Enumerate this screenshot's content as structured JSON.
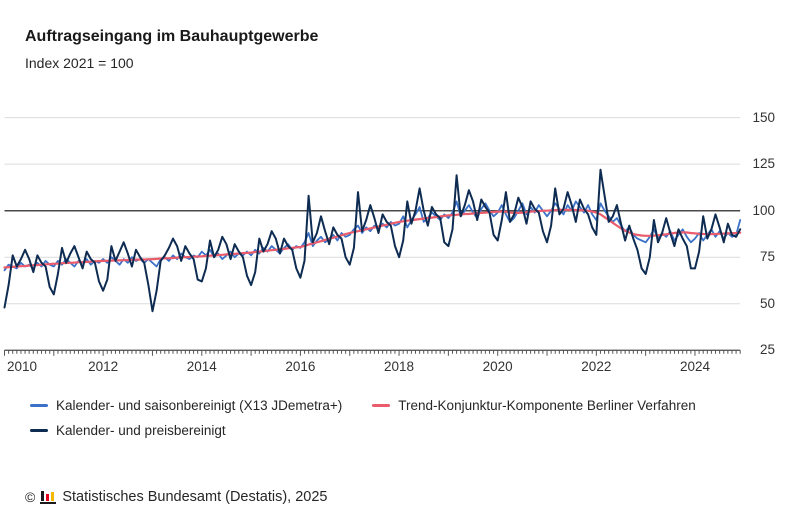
{
  "header": {
    "title": "Auftragseingang im Bauhauptgewerbe",
    "subtitle": "Index 2021 = 100"
  },
  "footer": {
    "copyright": "©",
    "source_label": "Statistisches Bundesamt (Destatis), 2025",
    "logo_icon": "destatis-bars-logo",
    "logo_colors": [
      "#1a1a1a",
      "#e2001a",
      "#f5b800"
    ]
  },
  "colors": {
    "grid": "#dcdcdc",
    "baseline": "#4a4a4a",
    "axis": "#4a4a4a",
    "tick": "#555555",
    "text": "#262626"
  },
  "chart_data": {
    "type": "line",
    "title": "Auftragseingang im Bauhauptgewerbe",
    "subtitle": "Index 2021 = 100",
    "x_start": "2010-01",
    "x_end": "2024-12",
    "x_frequency": "monthly",
    "x_tick_years": [
      2010,
      2012,
      2014,
      2016,
      2018,
      2020,
      2022,
      2024
    ],
    "y_ticks": [
      150,
      125,
      100,
      75,
      50,
      25
    ],
    "ylim": [
      25,
      155
    ],
    "baseline_value": 100,
    "grid": "horizontal",
    "legend_position": "bottom",
    "series": [
      {
        "name": "Kalender- und saisonbereinigt (X13 JDemetra+)",
        "color": "#3b72c8",
        "values": [
          68,
          71,
          70,
          69,
          72,
          70,
          71,
          69,
          72,
          70,
          73,
          71,
          70,
          73,
          71,
          74,
          72,
          70,
          73,
          72,
          74,
          71,
          73,
          72,
          74,
          72,
          75,
          73,
          71,
          74,
          72,
          75,
          73,
          74,
          72,
          74,
          72,
          70,
          74,
          75,
          73,
          76,
          74,
          77,
          75,
          74,
          76,
          75,
          78,
          76,
          79,
          75,
          77,
          74,
          76,
          78,
          75,
          77,
          76,
          78,
          76,
          79,
          77,
          80,
          78,
          81,
          79,
          77,
          80,
          82,
          79,
          81,
          80,
          83,
          88,
          81,
          84,
          86,
          83,
          85,
          87,
          84,
          88,
          86,
          87,
          90,
          92,
          88,
          91,
          89,
          92,
          90,
          93,
          91,
          94,
          92,
          93,
          97,
          91,
          95,
          98,
          102,
          94,
          96,
          99,
          97,
          95,
          98,
          96,
          99,
          105,
          97,
          100,
          103,
          99,
          96,
          101,
          104,
          100,
          97,
          99,
          103,
          98,
          94,
          96,
          100,
          104,
          98,
          102,
          99,
          103,
          100,
          97,
          100,
          104,
          101,
          98,
          103,
          100,
          105,
          102,
          99,
          103,
          98,
          95,
          104,
          100,
          97,
          94,
          96,
          92,
          89,
          91,
          87,
          85,
          84,
          83,
          86,
          90,
          85,
          88,
          86,
          89,
          84,
          87,
          90,
          86,
          83,
          85,
          88,
          84,
          87,
          90,
          86,
          89,
          85,
          88,
          86,
          87,
          95
        ]
      },
      {
        "name": "Trend-Konjunktur-Komponente Berliner Verfahren",
        "color": "#ea5c6b",
        "values": [
          69.5,
          69.7,
          69.8,
          70,
          70.2,
          70.3,
          70.5,
          70.7,
          70.8,
          71,
          71.2,
          71.3,
          71.5,
          71.6,
          71.8,
          71.9,
          72,
          72.1,
          72.3,
          72.4,
          72.5,
          72.6,
          72.8,
          72.9,
          73,
          73.1,
          73.2,
          73.3,
          73.3,
          73.4,
          73.5,
          73.6,
          73.7,
          73.8,
          73.8,
          73.9,
          74,
          74.1,
          74.3,
          74.4,
          74.5,
          74.6,
          74.8,
          74.9,
          75,
          75.1,
          75.3,
          75.4,
          75.5,
          75.7,
          75.8,
          76,
          76.2,
          76.3,
          76.5,
          76.7,
          76.8,
          77,
          77.2,
          77.3,
          77.5,
          77.8,
          78,
          78.3,
          78.5,
          78.8,
          79,
          79.3,
          79.5,
          79.8,
          80,
          80.3,
          80.5,
          81.1,
          81.8,
          82.4,
          83,
          83.6,
          84.3,
          84.9,
          85.5,
          86.1,
          86.8,
          87.4,
          88,
          88.5,
          89,
          89.5,
          90,
          90.5,
          91,
          91.5,
          92,
          92.5,
          93,
          93.5,
          94,
          94.3,
          94.6,
          94.9,
          95.2,
          95.5,
          95.8,
          96,
          96.3,
          96.6,
          96.9,
          97.2,
          97.5,
          97.7,
          97.8,
          98,
          98.2,
          98.3,
          98.5,
          98.7,
          98.8,
          99,
          99.2,
          99.3,
          99.5,
          99.5,
          99.5,
          99,
          98.8,
          98.8,
          99,
          99.2,
          99.5,
          99.7,
          99.8,
          100,
          100,
          100.2,
          100.3,
          100.5,
          100.5,
          100.5,
          100.5,
          100.4,
          100.3,
          100.2,
          100,
          99.5,
          99,
          98,
          96.5,
          95,
          93.5,
          92,
          90.5,
          89.3,
          88.3,
          87.5,
          87,
          86.7,
          86.5,
          86.5,
          86.6,
          86.8,
          87,
          87.3,
          87.7,
          88,
          88.3,
          88.4,
          88.3,
          88,
          87.8,
          87.6,
          87.5,
          87.4,
          87.4,
          87.5,
          87.6,
          87.7,
          87.8,
          87.9,
          88,
          88.2
        ]
      },
      {
        "name": "Kalender- und preisbereinigt",
        "color": "#0e2c52",
        "values": [
          48,
          60,
          76,
          70,
          74,
          79,
          74,
          67,
          76,
          72,
          70,
          59,
          55,
          66,
          80,
          72,
          77,
          81,
          75,
          69,
          78,
          74,
          72,
          62,
          57,
          63,
          81,
          73,
          78,
          83,
          77,
          70,
          79,
          75,
          72,
          60,
          46,
          57,
          73,
          76,
          80,
          85,
          81,
          73,
          81,
          77,
          74,
          63,
          62,
          69,
          84,
          75,
          79,
          86,
          82,
          74,
          82,
          78,
          75,
          65,
          60,
          67,
          85,
          78,
          82,
          89,
          85,
          77,
          85,
          81,
          79,
          69,
          64,
          73,
          108,
          83,
          88,
          97,
          89,
          82,
          91,
          87,
          85,
          75,
          71,
          80,
          110,
          89,
          95,
          103,
          96,
          88,
          98,
          94,
          92,
          81,
          75,
          84,
          105,
          93,
          100,
          112,
          100,
          92,
          102,
          98,
          96,
          83,
          81,
          90,
          119,
          97,
          103,
          111,
          105,
          95,
          106,
          102,
          99,
          87,
          84,
          95,
          110,
          94,
          98,
          107,
          102,
          93,
          105,
          101,
          99,
          89,
          83,
          92,
          112,
          98,
          101,
          110,
          103,
          94,
          106,
          101,
          98,
          91,
          87,
          122,
          108,
          94,
          97,
          103,
          93,
          84,
          92,
          85,
          79,
          69,
          66,
          75,
          95,
          83,
          88,
          96,
          88,
          81,
          90,
          85,
          81,
          69,
          69,
          78,
          97,
          85,
          90,
          98,
          91,
          83,
          93,
          87,
          86,
          90
        ]
      }
    ]
  }
}
